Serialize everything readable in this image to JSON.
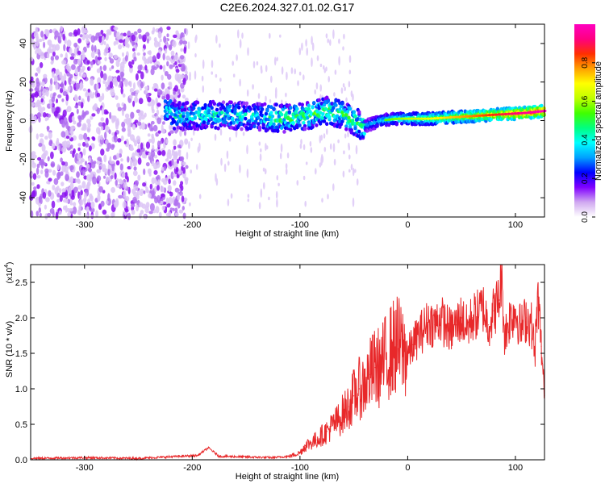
{
  "title": "C2E6.2024.327.01.02.G17",
  "chart_data": [
    {
      "type": "heatmap",
      "xlabel": "Height of straight line (km)",
      "ylabel": "Frequency (Hz)",
      "xlim": [
        -350,
        127
      ],
      "ylim": [
        -50,
        50
      ],
      "xticks": [
        -300,
        -200,
        -100,
        0,
        100
      ],
      "yticks": [
        -40,
        -20,
        0,
        20,
        40
      ],
      "colorbar": {
        "label": "Normalized spectral amplitude",
        "range": [
          0,
          1
        ],
        "ticks": [
          "0.0",
          "0.2",
          "0.4",
          "0.6",
          "0.8"
        ],
        "colors": [
          "#ffffff",
          "#d0a8f0",
          "#8000ff",
          "#0000ff",
          "#00a0ff",
          "#00ffff",
          "#00ff80",
          "#40ff00",
          "#c0ff00",
          "#ffff00",
          "#ffa000",
          "#ff3000",
          "#ff0080",
          "#ff00c0"
        ]
      },
      "ridge": {
        "x": [
          -220,
          -180,
          -140,
          -110,
          -90,
          -75,
          -60,
          -50,
          -42,
          -35,
          -25,
          -10,
          0,
          20,
          50,
          80,
          110,
          127
        ],
        "freq": [
          2,
          3,
          2,
          1,
          3,
          5,
          3,
          0,
          -3,
          -2,
          0,
          1,
          1,
          1,
          2,
          3,
          4,
          5
        ]
      },
      "noise_region": {
        "x": [
          -350,
          -205
        ],
        "freq": [
          -50,
          48
        ]
      }
    },
    {
      "type": "line",
      "xlabel": "Height of straight line (km)",
      "ylabel": "SNR (10 * v/v)",
      "yscale_label": "(x10",
      "yscale_exp": "4",
      "xlim": [
        -350,
        127
      ],
      "ylim": [
        0,
        2.75
      ],
      "xticks": [
        -300,
        -200,
        -100,
        0,
        100
      ],
      "yticks": [
        "0.0",
        "0.5",
        "1.0",
        "1.5",
        "2.0",
        "2.5"
      ],
      "series": [
        {
          "color": "#e8282a",
          "x": [
            -350,
            -300,
            -250,
            -210,
            -195,
            -185,
            -175,
            -150,
            -125,
            -110,
            -100,
            -95,
            -85,
            -75,
            -65,
            -55,
            -50,
            -45,
            -40,
            -35,
            -30,
            -25,
            -20,
            -15,
            -10,
            -5,
            0,
            5,
            10,
            15,
            20,
            25,
            30,
            35,
            40,
            45,
            50,
            55,
            60,
            65,
            70,
            75,
            80,
            85,
            87,
            90,
            95,
            100,
            105,
            110,
            115,
            118,
            121,
            124,
            127
          ],
          "y": [
            0.02,
            0.03,
            0.02,
            0.05,
            0.06,
            0.17,
            0.05,
            0.04,
            0.03,
            0.05,
            0.1,
            0.2,
            0.28,
            0.4,
            0.55,
            0.75,
            0.9,
            1.0,
            1.05,
            1.2,
            1.3,
            1.3,
            1.45,
            1.55,
            1.62,
            1.55,
            1.48,
            1.62,
            1.75,
            1.85,
            1.95,
            1.9,
            2.0,
            1.9,
            1.82,
            1.9,
            2.0,
            1.85,
            2.0,
            2.05,
            2.15,
            1.9,
            2.1,
            2.25,
            2.6,
            1.75,
            2.0,
            2.1,
            1.85,
            2.0,
            1.9,
            1.5,
            2.3,
            1.6,
            0.9
          ]
        }
      ]
    }
  ]
}
